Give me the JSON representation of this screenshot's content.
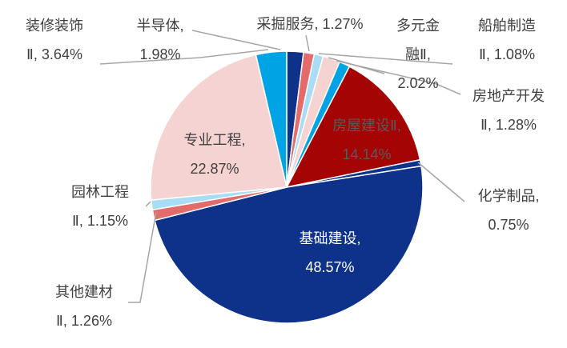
{
  "chart_data": {
    "type": "pie",
    "categories": [
      "半导体,",
      "采掘服务,",
      "船舶制造Ⅱ,",
      "多元金融Ⅱ,",
      "房地产开发Ⅱ,",
      "房屋建设Ⅱ,",
      "化学制品,",
      "基础建设,",
      "其他建材Ⅱ,",
      "园林工程Ⅱ,",
      "专业工程,",
      "装修装饰Ⅱ,"
    ],
    "values": [
      1.98,
      1.27,
      1.08,
      2.02,
      1.28,
      14.14,
      0.75,
      48.57,
      1.26,
      1.15,
      22.87,
      3.64
    ],
    "value_labels": [
      "1.98%",
      "1.27%",
      "1.08%",
      "2.02%",
      "1.28%",
      "14.14%",
      "0.75%",
      "48.57%",
      "1.26%",
      "1.15%",
      "22.87%",
      "3.64%"
    ],
    "colors": [
      "#0e318a",
      "#e46b6b",
      "#a9dcf5",
      "#f6d3d3",
      "#00a4e4",
      "#a50404",
      "#0e318a",
      "#0e318a",
      "#e46b6b",
      "#a9dcf5",
      "#f6d3d3",
      "#00a4e4"
    ]
  }
}
